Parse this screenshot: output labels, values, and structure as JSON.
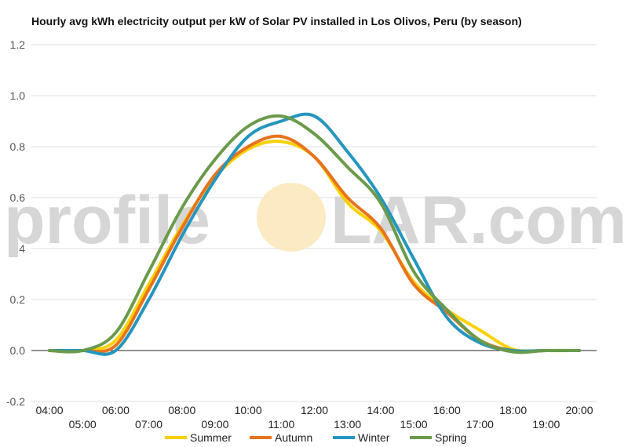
{
  "chart_data": {
    "type": "line",
    "title": "Hourly avg kWh electricity output per kW of Solar PV installed in Los Olivos, Peru (by season)",
    "xlabel": "",
    "ylabel": "",
    "x": [
      "04:00",
      "05:00",
      "06:00",
      "07:00",
      "08:00",
      "09:00",
      "10:00",
      "11:00",
      "12:00",
      "13:00",
      "14:00",
      "15:00",
      "16:00",
      "17:00",
      "18:00",
      "19:00",
      "20:00"
    ],
    "ylim": [
      -0.2,
      1.2
    ],
    "yticks": [
      "1.2",
      "1.0",
      "0.8",
      "0.6",
      "0.4",
      "0.2",
      "0.0",
      "-0.2"
    ],
    "grid": true,
    "legend_position": "bottom",
    "watermark": {
      "left": "profile",
      "right": "LAR.com"
    },
    "series": [
      {
        "name": "Summer",
        "color": "#f9d100",
        "values": [
          0.0,
          0.0,
          0.04,
          0.26,
          0.49,
          0.68,
          0.79,
          0.82,
          0.76,
          0.58,
          0.47,
          0.27,
          0.16,
          0.08,
          0.005,
          0.0,
          0.0
        ]
      },
      {
        "name": "Autumn",
        "color": "#e8731d",
        "values": [
          0.0,
          0.0,
          0.02,
          0.24,
          0.48,
          0.69,
          0.8,
          0.84,
          0.76,
          0.6,
          0.48,
          0.26,
          0.15,
          0.04,
          0.0,
          0.0,
          0.0
        ]
      },
      {
        "name": "Winter",
        "color": "#2596be",
        "values": [
          0.0,
          0.0,
          0.0,
          0.2,
          0.45,
          0.67,
          0.84,
          0.9,
          0.92,
          0.78,
          0.6,
          0.36,
          0.13,
          0.03,
          0.0,
          0.0,
          0.0
        ]
      },
      {
        "name": "Spring",
        "color": "#6a9a4b",
        "values": [
          0.0,
          0.0,
          0.07,
          0.31,
          0.56,
          0.75,
          0.88,
          0.92,
          0.85,
          0.72,
          0.58,
          0.31,
          0.16,
          0.04,
          -0.005,
          0.0,
          0.0
        ]
      }
    ]
  }
}
